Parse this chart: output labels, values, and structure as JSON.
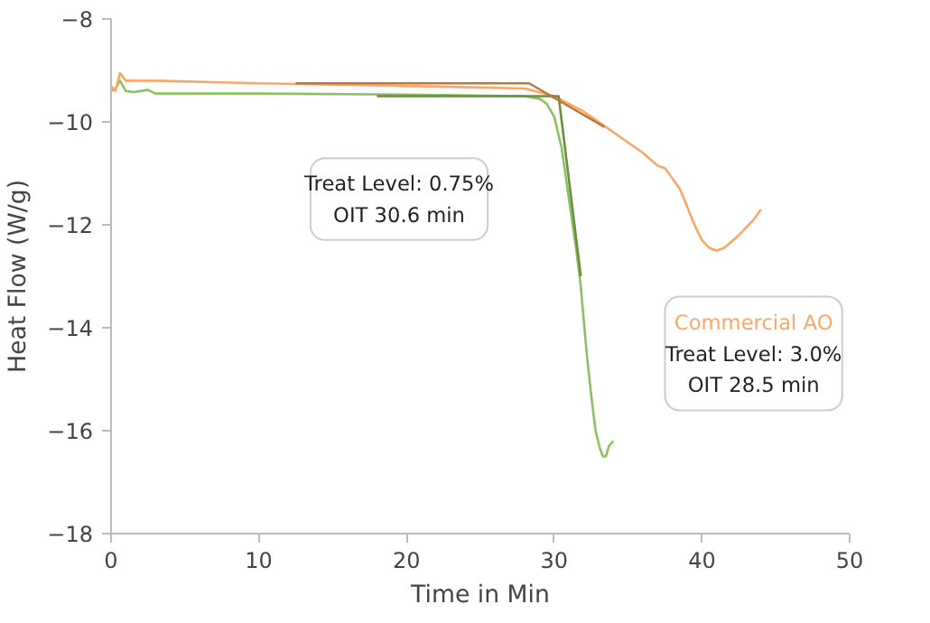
{
  "chart_data": {
    "type": "line",
    "xlabel": "Time in Min",
    "ylabel": "Heat Flow (W/g)",
    "xlim": [
      0,
      50
    ],
    "xticks": [
      0,
      10,
      20,
      30,
      40,
      50
    ],
    "ylim": [
      -18,
      -8
    ],
    "yticks": [
      -18,
      -16,
      -14,
      -12,
      -10,
      -8
    ],
    "grid": false,
    "marker": "none",
    "line_style": "solid",
    "series": [
      {
        "color": "#8cc063",
        "x": [
          0,
          0.3,
          0.6,
          1,
          1.5,
          2.5,
          3,
          10,
          20,
          28,
          29,
          29.5,
          30,
          30.5,
          31,
          31.5,
          31.8,
          32.2,
          32.5,
          32.8,
          33.1,
          33.3,
          33.5,
          33.7,
          34
        ],
        "values": [
          -9.4,
          -9.35,
          -9.2,
          -9.4,
          -9.42,
          -9.38,
          -9.45,
          -9.45,
          -9.47,
          -9.5,
          -9.55,
          -9.65,
          -9.9,
          -10.5,
          -11.5,
          -12.5,
          -13.2,
          -14.5,
          -15.3,
          -16,
          -16.35,
          -16.5,
          -16.5,
          -16.3,
          -16.2
        ]
      },
      {
        "name": "Commercial AO",
        "color": "#f9a868",
        "x": [
          0,
          0.3,
          0.6,
          1,
          3,
          10,
          20,
          28,
          30,
          32,
          34,
          36,
          37,
          37.5,
          38.5,
          39.5,
          40,
          40.5,
          41,
          41.5,
          42.5,
          43.5,
          44
        ],
        "values": [
          -9.3,
          -9.4,
          -9.05,
          -9.2,
          -9.2,
          -9.25,
          -9.3,
          -9.35,
          -9.5,
          -9.8,
          -10.2,
          -10.6,
          -10.85,
          -10.9,
          -11.3,
          -12,
          -12.3,
          -12.45,
          -12.5,
          -12.45,
          -12.2,
          -11.9,
          -11.7
        ]
      },
      {
        "color": "#6a8f3a",
        "x": [
          18,
          30.3,
          31.8
        ],
        "values": [
          -9.5,
          -9.5,
          -13
        ]
      },
      {
        "color": "#c0763a",
        "x": [
          12.5,
          28.3,
          33.4
        ],
        "values": [
          -9.25,
          -9.25,
          -10.1
        ]
      }
    ],
    "annotations": [
      "Treat Level: 0.75%\nOIT 30.6 min",
      "Treat Level: 3.0%\nOIT 28.5 min"
    ]
  }
}
